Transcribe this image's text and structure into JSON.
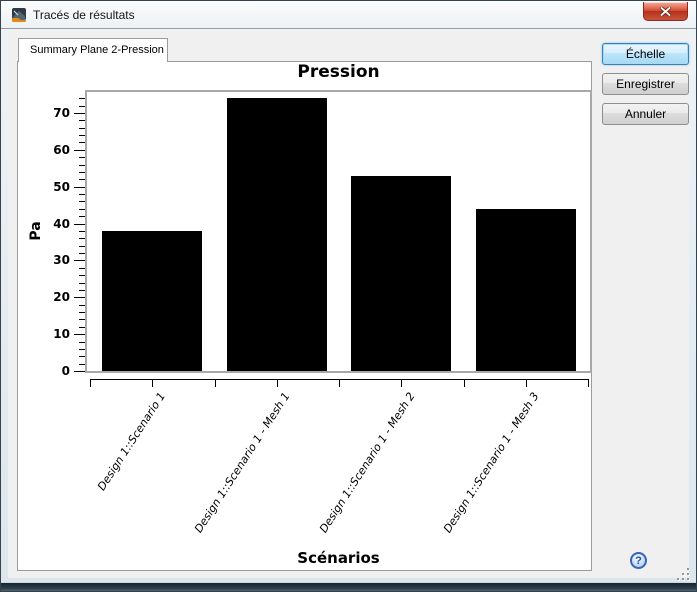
{
  "window": {
    "title": "Tracés de résultats"
  },
  "tab": {
    "label": "Summary Plane 2-Pression"
  },
  "buttons": {
    "scale": "Échelle",
    "save": "Enregistrer",
    "cancel": "Annuler"
  },
  "help": {
    "symbol": "?"
  },
  "chart_data": {
    "type": "bar",
    "title": "Pression",
    "xlabel": "Scénarios",
    "ylabel": "Pa",
    "categories": [
      "Design 1::Scenario 1",
      "Design 1::Scenario 1 - Mesh 1",
      "Design 1::Scenario 1 - Mesh 2",
      "Design 1::Scenario 1 - Mesh 3"
    ],
    "values": [
      38,
      74,
      53,
      44
    ],
    "ylim": [
      0,
      76
    ],
    "y_major_ticks": [
      0,
      10,
      20,
      30,
      40,
      50,
      60,
      70
    ],
    "y_minor_step": 2,
    "bar_color": "#000000",
    "axis_color": "#000000",
    "grid": false,
    "legend": null
  },
  "colors": {
    "dialog_bg": "#f0f0f0",
    "panel_bg": "#ffffff",
    "plot_border": "#a8a8a8",
    "default_button_border": "#3c7fb1",
    "close_button_red": "#c6402c"
  }
}
